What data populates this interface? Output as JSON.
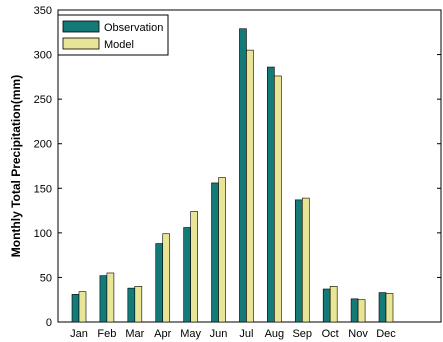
{
  "chart_data": {
    "type": "bar",
    "title": "",
    "xlabel": "",
    "ylabel": "Monthly Total Precipitation(mm)",
    "ylim": [
      0,
      350
    ],
    "yticks": [
      0,
      50,
      100,
      150,
      200,
      250,
      300,
      350
    ],
    "categories": [
      "Jan",
      "Feb",
      "Mar",
      "Apr",
      "May",
      "Jun",
      "Jul",
      "Aug",
      "Sep",
      "Oct",
      "Nov",
      "Dec"
    ],
    "series": [
      {
        "name": "Observation",
        "color": "#137a78",
        "values": [
          31,
          52,
          38,
          88,
          106,
          156,
          329,
          286,
          137,
          37,
          26,
          33
        ]
      },
      {
        "name": "Model",
        "color": "#e9e596",
        "values": [
          34,
          55,
          40,
          99,
          124,
          162,
          305,
          276,
          139,
          40,
          25,
          32
        ]
      }
    ],
    "legend": "top-left",
    "grid": false
  }
}
